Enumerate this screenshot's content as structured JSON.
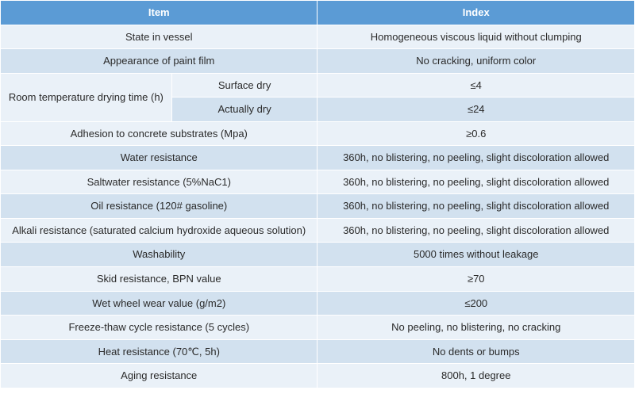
{
  "table": {
    "type": "table",
    "header_bg": "#5b9bd5",
    "header_fg": "#ffffff",
    "band_light": "#eaf1f8",
    "band_dark": "#d2e1ef",
    "border_color": "#ffffff",
    "font_family": "Arial",
    "font_size_pt": 10,
    "header_font_weight": 700,
    "columns": {
      "item": "Item",
      "index": "Index"
    },
    "col_widths_pct": [
      27,
      23,
      50
    ],
    "rows": [
      {
        "band": "light",
        "item": "State in vessel",
        "index": "Homogeneous viscous liquid without clumping"
      },
      {
        "band": "dark",
        "item": "Appearance of paint film",
        "index": "No cracking, uniform color"
      },
      {
        "band": "light",
        "item_group": "Room temperature drying time (h)",
        "item_sub": "Surface dry",
        "index": "≤4"
      },
      {
        "band": "dark",
        "item_sub": "Actually dry",
        "index": "≤24"
      },
      {
        "band": "light",
        "item": "Adhesion to concrete substrates (Mpa)",
        "index": "≥0.6"
      },
      {
        "band": "dark",
        "item": "Water resistance",
        "index": "360h, no blistering, no peeling, slight discoloration allowed"
      },
      {
        "band": "light",
        "item": "Saltwater resistance (5%NaC1)",
        "index": "360h, no blistering, no peeling, slight discoloration allowed"
      },
      {
        "band": "dark",
        "item": "Oil resistance (120# gasoline)",
        "index": "360h, no blistering, no peeling, slight discoloration allowed"
      },
      {
        "band": "light",
        "item": "Alkali resistance (saturated calcium hydroxide aqueous solution)",
        "index": "360h, no blistering, no peeling, slight discoloration allowed"
      },
      {
        "band": "dark",
        "item": "Washability",
        "index": "5000 times without leakage"
      },
      {
        "band": "light",
        "item": "Skid resistance, BPN value",
        "index": "≥70"
      },
      {
        "band": "dark",
        "item": "Wet wheel wear value (g/m2)",
        "index": "≤200"
      },
      {
        "band": "light",
        "item": "Freeze-thaw cycle resistance (5 cycles)",
        "index": "No peeling, no blistering, no cracking"
      },
      {
        "band": "dark",
        "item": "Heat resistance (70℃, 5h)",
        "index": "No dents or bumps"
      },
      {
        "band": "light",
        "item": "Aging resistance",
        "index": "800h, 1 degree"
      }
    ]
  }
}
